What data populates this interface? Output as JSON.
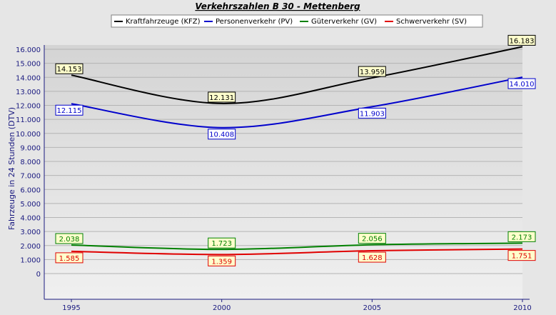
{
  "chart_data": {
    "type": "line",
    "title": "Verkehrszahlen B 30 - Mettenberg",
    "xlabel": "",
    "ylabel": "Fahrzeuge in 24 Stunden (DTV)",
    "x": [
      "1995",
      "2000",
      "2005",
      "2010"
    ],
    "xlim": [
      1995,
      2010
    ],
    "ylim": [
      0,
      16000
    ],
    "y_ticks": [
      "0",
      "1.000",
      "2.000",
      "3.000",
      "4.000",
      "5.000",
      "6.000",
      "7.000",
      "8.000",
      "9.000",
      "10.000",
      "11.000",
      "12.000",
      "13.000",
      "14.000",
      "15.000",
      "16.000"
    ],
    "grid": "horizontal",
    "legend_position": "top",
    "series": [
      {
        "name": "Kraftfahrzeuge (KFZ)",
        "color": "#000000",
        "label_bg": "#ffffcc",
        "values": [
          14153,
          12131,
          13959,
          16183
        ],
        "labels": [
          "14.153",
          "12.131",
          "13.959",
          "16.183"
        ]
      },
      {
        "name": "Personenverkehr (PV)",
        "color": "#0000cc",
        "label_bg": "#ffffff",
        "values": [
          12115,
          10408,
          11903,
          14010
        ],
        "labels": [
          "12.115",
          "10.408",
          "11.903",
          "14.010"
        ]
      },
      {
        "name": "Güterverkehr (GV)",
        "color": "#008000",
        "label_bg": "#ffffcc",
        "values": [
          2038,
          1723,
          2056,
          2173
        ],
        "labels": [
          "2.038",
          "1.723",
          "2.056",
          "2.173"
        ]
      },
      {
        "name": "Schwerverkehr (SV)",
        "color": "#e00000",
        "label_bg": "#ffffcc",
        "values": [
          1585,
          1359,
          1628,
          1751
        ],
        "labels": [
          "1.585",
          "1.359",
          "1.628",
          "1.751"
        ]
      }
    ]
  }
}
